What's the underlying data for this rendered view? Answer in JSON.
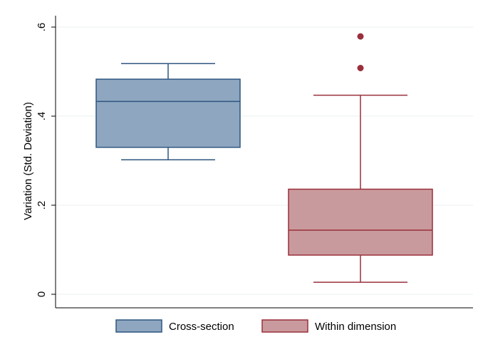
{
  "chart_data": {
    "type": "box",
    "ylabel": "Variation (Std. Deviation)",
    "ylim": [
      0,
      0.6
    ],
    "yticks": [
      {
        "value": 0,
        "label": "0"
      },
      {
        "value": 0.2,
        "label": ".2"
      },
      {
        "value": 0.4,
        "label": ".4"
      },
      {
        "value": 0.6,
        "label": ".6"
      }
    ],
    "grid": true,
    "legend_position": "bottom",
    "series": [
      {
        "name": "Cross-section",
        "color": "#8ea6bf",
        "edge": "#2f5680",
        "min": 0.302,
        "q1": 0.33,
        "median": 0.433,
        "q3": 0.483,
        "max": 0.518,
        "outliers": []
      },
      {
        "name": "Within dimension",
        "color": "#c99a9d",
        "edge": "#9b2f3b",
        "min": 0.027,
        "q1": 0.088,
        "median": 0.144,
        "q3": 0.236,
        "max": 0.447,
        "outliers": [
          0.508,
          0.579
        ]
      }
    ]
  }
}
